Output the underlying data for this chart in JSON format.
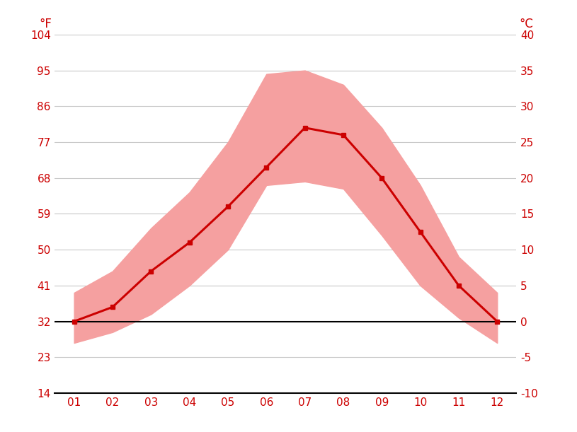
{
  "months": [
    1,
    2,
    3,
    4,
    5,
    6,
    7,
    8,
    9,
    10,
    11,
    12
  ],
  "month_labels": [
    "01",
    "02",
    "03",
    "04",
    "05",
    "06",
    "07",
    "08",
    "09",
    "10",
    "11",
    "12"
  ],
  "avg_temp_c": [
    0.0,
    2.0,
    7.0,
    11.0,
    16.0,
    21.5,
    27.0,
    26.0,
    20.0,
    12.5,
    5.0,
    0.0
  ],
  "max_temp_c": [
    4.0,
    7.0,
    13.0,
    18.0,
    25.0,
    34.5,
    35.0,
    33.0,
    27.0,
    19.0,
    9.0,
    4.0
  ],
  "min_temp_c": [
    -3.0,
    -1.5,
    1.0,
    5.0,
    10.0,
    19.0,
    19.5,
    18.5,
    12.0,
    5.0,
    0.5,
    -3.0
  ],
  "ylim_c": [
    -10,
    40
  ],
  "yticks_c": [
    -10,
    -5,
    0,
    5,
    10,
    15,
    20,
    25,
    30,
    35,
    40
  ],
  "yticks_f": [
    14,
    23,
    32,
    41,
    50,
    59,
    68,
    77,
    86,
    95,
    104
  ],
  "line_color": "#cc0000",
  "band_color": "#f5a0a0",
  "zero_line_color": "#000000",
  "grid_color": "#c8c8c8",
  "tick_color": "#cc0000",
  "bg_color": "#ffffff",
  "font_size": 11,
  "label_font_size": 12
}
